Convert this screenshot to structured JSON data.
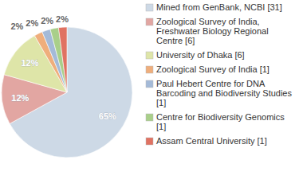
{
  "chart_data": {
    "type": "pie",
    "categories": [
      "Mined from GenBank, NCBI [31]",
      "Zoological Survey of India, Freshwater Biology Regional Centre [6]",
      "University of Dhaka [6]",
      "Zoological Survey of India [1]",
      "Paul Hebert Centre for DNA Barcoding and Biodiversity Studies [1]",
      "Centre for Biodiversity Genomics [1]",
      "Assam Central University [1]"
    ],
    "values": [
      65,
      12,
      12,
      2,
      2,
      2,
      2
    ],
    "value_labels": [
      "65%",
      "12%",
      "12%",
      "2%",
      "2%",
      "2%",
      "2%"
    ],
    "colors": [
      "#cdd9e6",
      "#e2a6a2",
      "#dee5a8",
      "#efae7c",
      "#a4bad8",
      "#a9cf8a",
      "#e07262"
    ],
    "data_labels": true,
    "legend": "right"
  }
}
